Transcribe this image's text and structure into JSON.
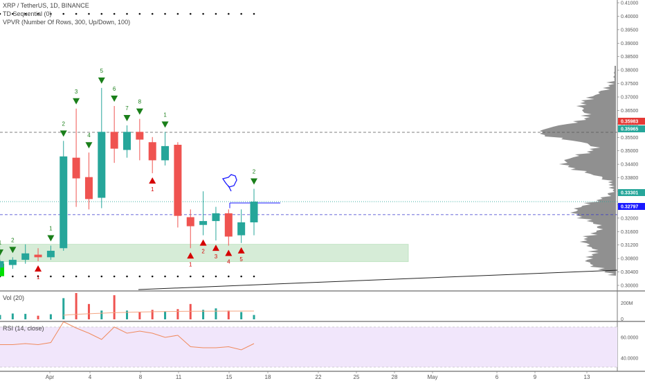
{
  "legend": {
    "symbol_line": "XRP / TetherUS, 1D, BINANCE",
    "td_label": "TD Sequential (0)",
    "vpvr_label": "VPVR (Number Of Rows, 300, Up/Down, 100)",
    "vol_label": "Vol (20)",
    "rsi_label": "RSI (14, close)"
  },
  "colors": {
    "up": "#26a69a",
    "down": "#ef5350",
    "td_up": "#1a7f1a",
    "td_down": "#d50000",
    "support_zone": "#a5d6a7",
    "price_badge_red": "#e53935",
    "price_badge_green": "#26a69a",
    "price_badge_blue": "#1a1aff",
    "vpvr": "#8a8a8a",
    "rsi_bg": "#f1e6fb",
    "rsi_line": "#f08a5d",
    "vol_ma": "#f4a582"
  },
  "chart_data": {
    "type": "candlestick",
    "symbol": "XRP / TetherUS",
    "interval": "1D",
    "exchange": "BINANCE",
    "y_axis_ticks": [
      "0.41000",
      "0.40000",
      "0.39500",
      "0.39000",
      "0.38500",
      "0.38000",
      "0.37500",
      "0.37000",
      "0.36500",
      "0.36000",
      "0.35500",
      "0.35000",
      "0.34400",
      "0.33800",
      "0.33200",
      "0.32600",
      "0.32000",
      "0.31600",
      "0.31200",
      "0.30800",
      "0.30400",
      "0.30000"
    ],
    "x_axis_labels": [
      "Apr",
      "4",
      "8",
      "11",
      "15",
      "18",
      "22",
      "25",
      "28",
      "May",
      "6",
      "9",
      "13"
    ],
    "price_badges": [
      {
        "value": "0.35983",
        "color": "red"
      },
      {
        "value": "0.35965",
        "color": "green"
      },
      {
        "value": "0.33301",
        "color": "green"
      },
      {
        "value": "0.32797",
        "color": "blue"
      }
    ],
    "candles": [
      {
        "date": "Mar 27",
        "open": 0.3075,
        "high": 0.3105,
        "low": 0.306,
        "close": 0.31
      },
      {
        "date": "Mar 28",
        "open": 0.3085,
        "high": 0.3115,
        "low": 0.307,
        "close": 0.3105
      },
      {
        "date": "Mar 29",
        "open": 0.3105,
        "high": 0.3165,
        "low": 0.309,
        "close": 0.313
      },
      {
        "date": "Mar 30",
        "open": 0.3125,
        "high": 0.315,
        "low": 0.31,
        "close": 0.3115
      },
      {
        "date": "Mar 31",
        "open": 0.3115,
        "high": 0.316,
        "low": 0.3105,
        "close": 0.314
      },
      {
        "date": "Apr 1",
        "open": 0.315,
        "high": 0.3565,
        "low": 0.314,
        "close": 0.3505
      },
      {
        "date": "Apr 2",
        "open": 0.35,
        "high": 0.369,
        "low": 0.331,
        "close": 0.342
      },
      {
        "date": "Apr 3",
        "open": 0.3425,
        "high": 0.352,
        "low": 0.33,
        "close": 0.334
      },
      {
        "date": "Apr 4",
        "open": 0.3345,
        "high": 0.377,
        "low": 0.3305,
        "close": 0.36
      },
      {
        "date": "Apr 5",
        "open": 0.36,
        "high": 0.37,
        "low": 0.348,
        "close": 0.3535
      },
      {
        "date": "Apr 6",
        "open": 0.353,
        "high": 0.3625,
        "low": 0.35,
        "close": 0.36
      },
      {
        "date": "Apr 7",
        "open": 0.36,
        "high": 0.365,
        "low": 0.349,
        "close": 0.357
      },
      {
        "date": "Apr 8",
        "open": 0.356,
        "high": 0.358,
        "low": 0.344,
        "close": 0.349
      },
      {
        "date": "Apr 9",
        "open": 0.349,
        "high": 0.36,
        "low": 0.347,
        "close": 0.3545
      },
      {
        "date": "Apr 10",
        "open": 0.355,
        "high": 0.356,
        "low": 0.323,
        "close": 0.3275
      },
      {
        "date": "Apr 11",
        "open": 0.327,
        "high": 0.33,
        "low": 0.315,
        "close": 0.3235
      },
      {
        "date": "Apr 12",
        "open": 0.324,
        "high": 0.337,
        "low": 0.32,
        "close": 0.3255
      },
      {
        "date": "Apr 13",
        "open": 0.3255,
        "high": 0.331,
        "low": 0.318,
        "close": 0.3285
      },
      {
        "date": "Apr 14",
        "open": 0.3285,
        "high": 0.33,
        "low": 0.316,
        "close": 0.3195
      },
      {
        "date": "Apr 15",
        "open": 0.32,
        "high": 0.33,
        "low": 0.317,
        "close": 0.325
      },
      {
        "date": "Apr 16",
        "open": 0.325,
        "high": 0.338,
        "low": 0.32,
        "close": 0.333
      }
    ],
    "td_sequential": [
      {
        "date": "Mar 27",
        "label": "1",
        "side": "up"
      },
      {
        "date": "Mar 28",
        "label": "2",
        "side": "up"
      },
      {
        "date": "Mar 31",
        "label": "1",
        "side": "up"
      },
      {
        "date": "Apr 1",
        "label": "2",
        "side": "up"
      },
      {
        "date": "Apr 2",
        "label": "3",
        "side": "up"
      },
      {
        "date": "Apr 3",
        "label": "4",
        "side": "up"
      },
      {
        "date": "Apr 4",
        "label": "5",
        "side": "up"
      },
      {
        "date": "Apr 5",
        "label": "6",
        "side": "up"
      },
      {
        "date": "Apr 6",
        "label": "7",
        "side": "up"
      },
      {
        "date": "Apr 7",
        "label": "8",
        "side": "up"
      },
      {
        "date": "Apr 9",
        "label": "1",
        "side": "up"
      },
      {
        "date": "Apr 16",
        "label": "2",
        "side": "up"
      },
      {
        "date": "Mar 30",
        "label": "1",
        "side": "down"
      },
      {
        "date": "Apr 8",
        "label": "1",
        "side": "down"
      },
      {
        "date": "Apr 11",
        "label": "1",
        "side": "down"
      },
      {
        "date": "Apr 12",
        "label": "2",
        "side": "down"
      },
      {
        "date": "Apr 13",
        "label": "3",
        "side": "down"
      },
      {
        "date": "Apr 14",
        "label": "4",
        "side": "down"
      },
      {
        "date": "Apr 15",
        "label": "5",
        "side": "down"
      }
    ],
    "volume_axis_ticks": [
      "200M",
      "0"
    ],
    "volume": [
      60,
      80,
      75,
      50,
      70,
      290,
      360,
      210,
      120,
      330,
      120,
      100,
      130,
      110,
      140,
      210,
      130,
      150,
      120,
      100,
      60
    ],
    "rsi_axis_ticks": [
      "60.0000",
      "40.0000"
    ],
    "rsi": [
      53,
      53,
      54,
      53,
      55,
      75,
      69,
      64,
      58,
      70,
      64,
      66,
      64,
      60,
      62,
      51,
      50,
      50,
      51,
      48,
      54
    ],
    "support_zone": {
      "top": 0.3165,
      "bottom": 0.3098
    },
    "levels": {
      "upper": 0.35983,
      "lower": 0.32797,
      "current": 0.33301
    }
  }
}
